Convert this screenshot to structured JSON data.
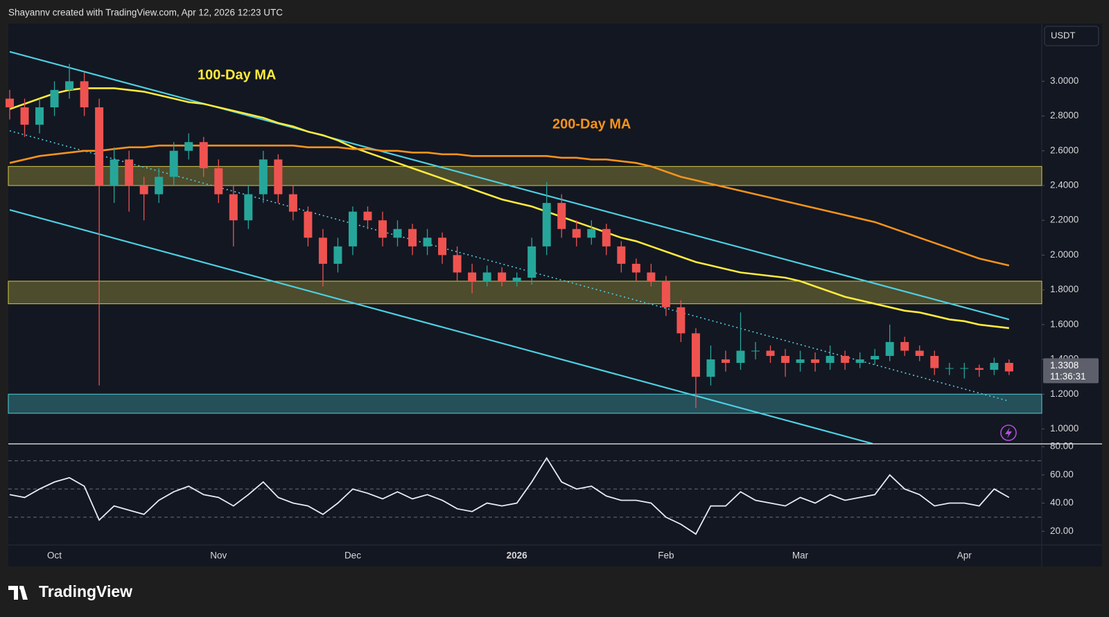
{
  "header": "Shayannv created with TradingView.com, Apr 12, 2026 12:23 UTC",
  "logo": "TradingView",
  "chart_data": [
    {
      "type": "candlestick",
      "currency": "USDT",
      "countdown": "11:36:31",
      "up_color": "#26a69a",
      "down_color": "#ef5350",
      "categories": [
        null,
        null,
        null,
        "Oct",
        null,
        null,
        null,
        null,
        null,
        null,
        null,
        null,
        null,
        null,
        "Nov",
        null,
        null,
        null,
        null,
        null,
        null,
        null,
        null,
        "Dec",
        null,
        null,
        null,
        null,
        null,
        null,
        null,
        null,
        null,
        null,
        "2026",
        null,
        null,
        null,
        null,
        null,
        null,
        null,
        null,
        null,
        "Feb",
        null,
        null,
        null,
        null,
        null,
        null,
        null,
        null,
        "Mar",
        null,
        null,
        null,
        null,
        null,
        null,
        null,
        null,
        null,
        null,
        "Apr",
        null,
        null,
        null
      ],
      "open": [
        2.9,
        2.85,
        2.75,
        2.85,
        2.95,
        3.0,
        2.85,
        2.4,
        2.55,
        2.4,
        2.35,
        2.45,
        2.6,
        2.65,
        2.5,
        2.35,
        2.2,
        2.35,
        2.55,
        2.35,
        2.25,
        2.1,
        1.95,
        2.05,
        2.25,
        2.2,
        2.1,
        2.15,
        2.05,
        2.1,
        2.0,
        1.9,
        1.85,
        1.9,
        1.85,
        1.87,
        2.05,
        2.3,
        2.15,
        2.1,
        2.15,
        2.05,
        1.95,
        1.9,
        1.85,
        1.7,
        1.55,
        1.3,
        1.4,
        1.38,
        1.45,
        1.45,
        1.42,
        1.38,
        1.4,
        1.38,
        1.42,
        1.38,
        1.4,
        1.42,
        1.5,
        1.45,
        1.42,
        1.35,
        1.35,
        1.35,
        1.34,
        1.38
      ],
      "high": [
        2.95,
        2.9,
        2.9,
        3.0,
        3.1,
        3.05,
        2.9,
        2.62,
        2.6,
        2.45,
        2.5,
        2.65,
        2.7,
        2.68,
        2.55,
        2.4,
        2.4,
        2.6,
        2.58,
        2.4,
        2.28,
        2.15,
        2.1,
        2.28,
        2.28,
        2.25,
        2.2,
        2.18,
        2.15,
        2.13,
        2.05,
        1.95,
        1.94,
        1.93,
        1.9,
        2.1,
        2.42,
        2.35,
        2.2,
        2.2,
        2.18,
        2.08,
        1.98,
        1.95,
        1.88,
        1.74,
        1.58,
        1.48,
        1.45,
        1.67,
        1.5,
        1.48,
        1.46,
        1.45,
        1.44,
        1.48,
        1.45,
        1.44,
        1.46,
        1.6,
        1.53,
        1.48,
        1.45,
        1.38,
        1.38,
        1.37,
        1.41,
        1.4
      ],
      "low": [
        2.78,
        2.68,
        2.7,
        2.8,
        2.9,
        2.8,
        1.25,
        2.3,
        2.25,
        2.2,
        2.3,
        2.4,
        2.55,
        2.45,
        2.3,
        2.05,
        2.15,
        2.3,
        2.3,
        2.2,
        2.05,
        1.82,
        1.9,
        2.0,
        2.15,
        2.05,
        2.05,
        2.0,
        2.0,
        1.95,
        1.85,
        1.78,
        1.82,
        1.82,
        1.82,
        1.83,
        2.0,
        2.1,
        2.05,
        2.06,
        2.0,
        1.9,
        1.85,
        1.82,
        1.65,
        1.5,
        1.12,
        1.25,
        1.33,
        1.34,
        1.4,
        1.38,
        1.3,
        1.33,
        1.33,
        1.34,
        1.34,
        1.35,
        1.37,
        1.39,
        1.42,
        1.39,
        1.31,
        1.31,
        1.29,
        1.3,
        1.31,
        1.31
      ],
      "close": [
        2.85,
        2.75,
        2.85,
        2.95,
        3.0,
        2.85,
        2.4,
        2.55,
        2.4,
        2.35,
        2.45,
        2.6,
        2.65,
        2.5,
        2.35,
        2.2,
        2.35,
        2.55,
        2.35,
        2.25,
        2.1,
        1.95,
        2.05,
        2.25,
        2.2,
        2.1,
        2.15,
        2.05,
        2.1,
        2.0,
        1.9,
        1.85,
        1.9,
        1.85,
        1.87,
        2.05,
        2.3,
        2.15,
        2.1,
        2.15,
        2.05,
        1.95,
        1.9,
        1.85,
        1.7,
        1.55,
        1.3,
        1.4,
        1.38,
        1.45,
        1.45,
        1.42,
        1.38,
        1.4,
        1.38,
        1.42,
        1.38,
        1.4,
        1.42,
        1.5,
        1.45,
        1.42,
        1.35,
        1.35,
        1.35,
        1.34,
        1.38,
        1.3308
      ],
      "series": [
        {
          "name": "100-Day MA",
          "color": "#ffeb3b",
          "values": [
            2.84,
            2.87,
            2.9,
            2.93,
            2.95,
            2.96,
            2.96,
            2.96,
            2.95,
            2.94,
            2.92,
            2.9,
            2.88,
            2.87,
            2.85,
            2.83,
            2.81,
            2.79,
            2.76,
            2.74,
            2.71,
            2.69,
            2.66,
            2.62,
            2.59,
            2.56,
            2.53,
            2.5,
            2.47,
            2.44,
            2.41,
            2.38,
            2.35,
            2.32,
            2.3,
            2.28,
            2.25,
            2.22,
            2.19,
            2.16,
            2.13,
            2.1,
            2.08,
            2.05,
            2.02,
            1.99,
            1.96,
            1.94,
            1.92,
            1.9,
            1.89,
            1.88,
            1.87,
            1.85,
            1.82,
            1.79,
            1.76,
            1.74,
            1.72,
            1.7,
            1.68,
            1.67,
            1.65,
            1.63,
            1.62,
            1.6,
            1.59,
            1.58
          ]
        },
        {
          "name": "200-Day MA",
          "color": "#f7931a",
          "values": [
            2.53,
            2.55,
            2.57,
            2.58,
            2.59,
            2.6,
            2.6,
            2.61,
            2.62,
            2.62,
            2.63,
            2.63,
            2.63,
            2.63,
            2.63,
            2.63,
            2.63,
            2.63,
            2.63,
            2.63,
            2.62,
            2.62,
            2.62,
            2.61,
            2.61,
            2.6,
            2.6,
            2.59,
            2.59,
            2.58,
            2.58,
            2.57,
            2.57,
            2.57,
            2.57,
            2.57,
            2.57,
            2.56,
            2.56,
            2.55,
            2.55,
            2.54,
            2.53,
            2.51,
            2.48,
            2.45,
            2.43,
            2.41,
            2.39,
            2.37,
            2.35,
            2.33,
            2.31,
            2.29,
            2.27,
            2.25,
            2.23,
            2.21,
            2.19,
            2.16,
            2.13,
            2.1,
            2.07,
            2.04,
            2.01,
            1.98,
            1.96,
            1.94
          ]
        }
      ],
      "zones": [
        {
          "y": [
            2.4,
            2.51
          ],
          "color": "#d4c84a"
        },
        {
          "y": [
            1.72,
            1.85
          ],
          "color": "#d4c84a"
        },
        {
          "y": [
            1.09,
            1.2
          ],
          "color": "#4fd1d9"
        }
      ],
      "trendlines": [
        {
          "x": [
            0,
            67
          ],
          "y": [
            3.17,
            1.63
          ],
          "color": "#4dd0e1",
          "style": "solid"
        },
        {
          "x": [
            0,
            57.85
          ],
          "y": [
            2.26,
            0.915
          ],
          "color": "#4dd0e1",
          "style": "solid"
        },
        {
          "x": [
            0,
            67
          ],
          "y": [
            2.715,
            1.16
          ],
          "color": "#4dd0e1",
          "style": "dotted"
        }
      ],
      "ylim": [
        0.914,
        3.332
      ],
      "yticks": [
        {
          "value": 1,
          "label": "1.0000"
        },
        {
          "value": 1.2,
          "label": "1.2000"
        },
        {
          "value": 1.4,
          "label": "1.4000"
        },
        {
          "value": 1.6,
          "label": "1.6000"
        },
        {
          "value": 1.8,
          "label": "1.8000"
        },
        {
          "value": 2,
          "label": "2.0000"
        },
        {
          "value": 2.2,
          "label": "2.2000"
        },
        {
          "value": 2.4,
          "label": "2.4000"
        },
        {
          "value": 2.6,
          "label": "2.6000"
        },
        {
          "value": 2.8,
          "label": "2.8000"
        },
        {
          "value": 3,
          "label": "3.0000"
        }
      ]
    },
    {
      "type": "line",
      "series": [
        {
          "color": "#e8ecf5",
          "values": [
            46,
            44,
            50,
            55,
            58,
            52,
            28,
            38,
            35,
            32,
            42,
            48,
            52,
            46,
            44,
            38,
            46,
            55,
            44,
            40,
            38,
            32,
            40,
            50,
            47,
            43,
            48,
            43,
            46,
            42,
            36,
            34,
            40,
            38,
            40,
            55,
            72,
            55,
            50,
            52,
            45,
            42,
            42,
            40,
            30,
            25,
            18,
            38,
            38,
            48,
            42,
            40,
            38,
            44,
            40,
            46,
            42,
            44,
            46,
            60,
            50,
            46,
            38,
            40,
            40,
            38,
            50,
            44
          ]
        }
      ],
      "levels": [
        30,
        50,
        70
      ],
      "ylim": [
        10.3,
        82
      ],
      "yticks": [
        {
          "value": 20,
          "label": "20.00"
        },
        {
          "value": 40,
          "label": "40.00"
        },
        {
          "value": 60,
          "label": "60.00"
        },
        {
          "value": 80,
          "label": "80.00"
        }
      ]
    }
  ]
}
